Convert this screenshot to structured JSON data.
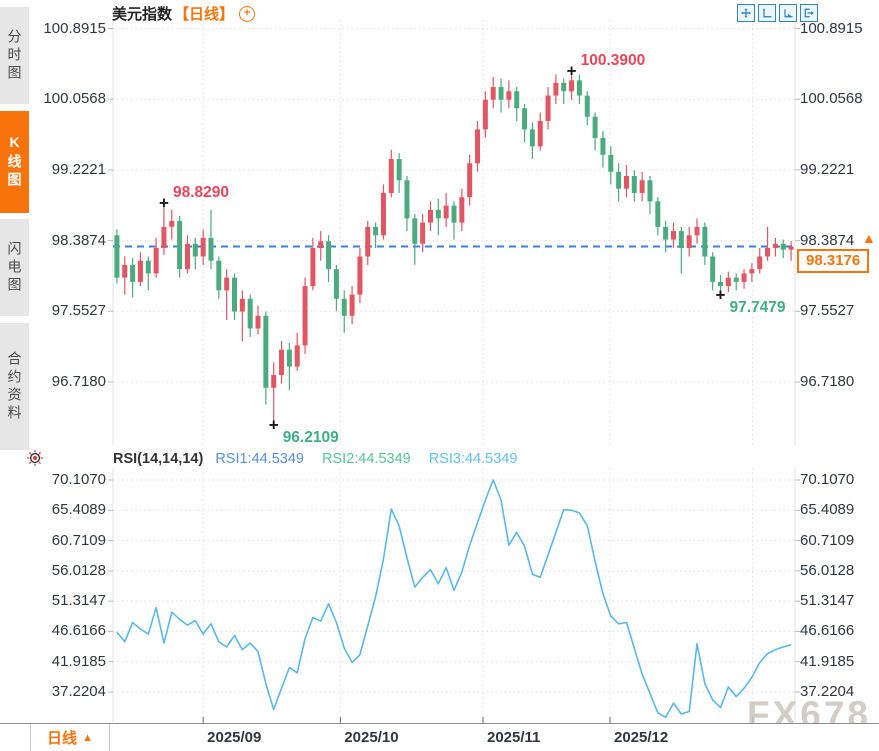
{
  "sidebar": {
    "items": [
      {
        "label": "分时图",
        "active": false
      },
      {
        "label": "K线图",
        "active": true
      },
      {
        "label": "闪电图",
        "active": false
      },
      {
        "label": "合约资料",
        "active": false
      }
    ]
  },
  "header": {
    "symbol": "美元指数",
    "period_tag": "【日线】",
    "add_icon": "+"
  },
  "toolbar": {
    "buttons": [
      "move-icon",
      "y-axis-zoom-icon",
      "x-axis-zoom-icon",
      "pan-right-icon"
    ]
  },
  "price_tag": {
    "value": "98.3176",
    "arrow": "▲"
  },
  "rsi_legend": {
    "name": "RSI(14,14,14)",
    "rsi1": "RSI1:44.5349",
    "rsi2": "RSI2:44.5349",
    "rsi3": "RSI3:44.5349"
  },
  "bottom_bar": {
    "period_label": "日线",
    "arrow": "▲"
  },
  "watermark": "FX678",
  "colors": {
    "accent_orange": "#f7740c",
    "up_red": "#e25562",
    "down_green": "#4bab7e",
    "dashed_blue": "#3b7fdd",
    "rsi_line": "#58b8ea",
    "annotation_red": "#e8455a",
    "annotation_green": "#3fae86"
  },
  "chart_data": [
    {
      "type": "candlestick",
      "title": "美元指数【日线】",
      "y_ticks": [
        100.8915,
        100.0568,
        99.2221,
        98.3874,
        97.5527,
        96.718
      ],
      "x_ticks": [
        {
          "label": "2025/09",
          "index": 11.5
        },
        {
          "label": "2025/10",
          "index": 29
        },
        {
          "label": "2025/11",
          "index": 47.2
        },
        {
          "label": "2025/12",
          "index": 63.4
        },
        {
          "label": "",
          "index": 81.6
        }
      ],
      "current_price": 98.3176,
      "up_color": "#e25562",
      "down_color": "#4bab7e",
      "annotations": [
        {
          "label": "98.8290",
          "index": 6,
          "price": 98.829,
          "color": "#e8455a",
          "position": "above"
        },
        {
          "label": "100.3900",
          "index": 58,
          "price": 100.39,
          "color": "#e8455a",
          "position": "above"
        },
        {
          "label": "96.2109",
          "index": 20,
          "price": 96.2109,
          "color": "#3fae86",
          "position": "below"
        },
        {
          "label": "97.7479",
          "index": 77,
          "price": 97.7479,
          "color": "#3fae86",
          "position": "below"
        }
      ],
      "candles": [
        [
          98.45,
          98.52,
          97.88,
          97.95
        ],
        [
          97.95,
          98.2,
          97.75,
          98.1
        ],
        [
          98.1,
          98.18,
          97.72,
          97.9
        ],
        [
          97.9,
          98.25,
          97.85,
          98.15
        ],
        [
          98.15,
          98.2,
          97.8,
          98.0
        ],
        [
          98.0,
          98.42,
          97.95,
          98.3
        ],
        [
          98.3,
          98.829,
          98.22,
          98.55
        ],
        [
          98.55,
          98.75,
          98.4,
          98.62
        ],
        [
          98.62,
          98.68,
          97.95,
          98.05
        ],
        [
          98.05,
          98.45,
          98.0,
          98.35
        ],
        [
          98.35,
          98.42,
          98.05,
          98.2
        ],
        [
          98.2,
          98.52,
          98.1,
          98.42
        ],
        [
          98.42,
          98.75,
          98.05,
          98.15
        ],
        [
          98.15,
          98.2,
          97.7,
          97.8
        ],
        [
          97.8,
          98.05,
          97.45,
          97.95
        ],
        [
          97.95,
          98.0,
          97.45,
          97.55
        ],
        [
          97.55,
          97.8,
          97.2,
          97.7
        ],
        [
          97.7,
          97.75,
          97.25,
          97.35
        ],
        [
          97.35,
          97.62,
          97.28,
          97.5
        ],
        [
          97.5,
          97.55,
          96.45,
          96.65
        ],
        [
          96.65,
          96.95,
          96.2109,
          96.8
        ],
        [
          96.8,
          97.2,
          96.7,
          97.1
        ],
        [
          97.1,
          97.18,
          96.62,
          96.9
        ],
        [
          96.9,
          97.3,
          96.85,
          97.15
        ],
        [
          97.15,
          97.95,
          97.05,
          97.85
        ],
        [
          97.85,
          98.42,
          97.8,
          98.3
        ],
        [
          98.3,
          98.5,
          98.15,
          98.38
        ],
        [
          98.38,
          98.45,
          97.9,
          98.05
        ],
        [
          98.05,
          98.1,
          97.55,
          97.7
        ],
        [
          97.7,
          97.8,
          97.3,
          97.5
        ],
        [
          97.5,
          97.85,
          97.4,
          97.75
        ],
        [
          97.75,
          98.3,
          97.65,
          98.2
        ],
        [
          98.2,
          98.62,
          98.1,
          98.55
        ],
        [
          98.55,
          98.6,
          98.3,
          98.45
        ],
        [
          98.45,
          99.05,
          98.4,
          98.95
        ],
        [
          98.95,
          99.46,
          98.9,
          99.35
        ],
        [
          99.35,
          99.42,
          98.95,
          99.1
        ],
        [
          99.1,
          99.15,
          98.5,
          98.65
        ],
        [
          98.65,
          98.7,
          98.1,
          98.35
        ],
        [
          98.35,
          98.7,
          98.25,
          98.6
        ],
        [
          98.6,
          98.85,
          98.5,
          98.75
        ],
        [
          98.75,
          98.88,
          98.45,
          98.65
        ],
        [
          98.65,
          98.95,
          98.55,
          98.8
        ],
        [
          98.8,
          98.85,
          98.4,
          98.6
        ],
        [
          98.6,
          99.0,
          98.5,
          98.9
        ],
        [
          98.9,
          99.4,
          98.8,
          99.3
        ],
        [
          99.3,
          99.8,
          99.2,
          99.7
        ],
        [
          99.7,
          100.15,
          99.6,
          100.05
        ],
        [
          100.05,
          100.32,
          99.95,
          100.2
        ],
        [
          100.2,
          100.3,
          99.9,
          100.05
        ],
        [
          100.05,
          100.28,
          99.95,
          100.15
        ],
        [
          100.15,
          100.2,
          99.8,
          99.95
        ],
        [
          99.95,
          100.0,
          99.55,
          99.7
        ],
        [
          99.7,
          99.78,
          99.35,
          99.5
        ],
        [
          99.5,
          99.9,
          99.45,
          99.8
        ],
        [
          99.8,
          100.2,
          99.7,
          100.1
        ],
        [
          100.1,
          100.35,
          100.0,
          100.25
        ],
        [
          100.25,
          100.3,
          100.0,
          100.15
        ],
        [
          100.15,
          100.39,
          100.05,
          100.28
        ],
        [
          100.28,
          100.35,
          100.0,
          100.1
        ],
        [
          100.1,
          100.15,
          99.75,
          99.85
        ],
        [
          99.85,
          99.9,
          99.45,
          99.6
        ],
        [
          99.6,
          99.68,
          99.25,
          99.4
        ],
        [
          99.4,
          99.5,
          99.05,
          99.2
        ],
        [
          99.2,
          99.3,
          98.85,
          99.0
        ],
        [
          99.0,
          99.28,
          98.9,
          99.15
        ],
        [
          99.15,
          99.22,
          98.85,
          98.95
        ],
        [
          98.95,
          99.2,
          98.85,
          99.1
        ],
        [
          99.1,
          99.15,
          98.7,
          98.85
        ],
        [
          98.85,
          98.9,
          98.45,
          98.55
        ],
        [
          98.55,
          98.62,
          98.25,
          98.4
        ],
        [
          98.4,
          98.6,
          98.3,
          98.5
        ],
        [
          98.5,
          98.55,
          98.0,
          98.3
        ],
        [
          98.3,
          98.55,
          98.2,
          98.45
        ],
        [
          98.45,
          98.65,
          98.35,
          98.55
        ],
        [
          98.55,
          98.6,
          98.1,
          98.2
        ],
        [
          98.2,
          98.25,
          97.8,
          97.9
        ],
        [
          97.9,
          97.98,
          97.7479,
          97.85
        ],
        [
          97.85,
          98.02,
          97.78,
          97.95
        ],
        [
          97.95,
          98.0,
          97.8,
          97.9
        ],
        [
          97.9,
          98.05,
          97.82,
          98.0
        ],
        [
          98.0,
          98.12,
          97.9,
          98.05
        ],
        [
          98.05,
          98.3,
          98.0,
          98.2
        ],
        [
          98.2,
          98.55,
          98.15,
          98.3
        ],
        [
          98.3,
          98.42,
          98.2,
          98.35
        ],
        [
          98.35,
          98.4,
          98.18,
          98.28
        ],
        [
          98.28,
          98.38,
          98.15,
          98.3176
        ]
      ]
    },
    {
      "type": "line",
      "name": "RSI",
      "params": "(14,14,14)",
      "series": [
        {
          "name": "RSI1",
          "value": 44.5349,
          "color": "#5a8de8"
        },
        {
          "name": "RSI2",
          "value": 44.5349,
          "color": "#55c593"
        },
        {
          "name": "RSI3",
          "value": 44.5349,
          "color": "#5ec1ef"
        }
      ],
      "line_color": "#58b8ea",
      "y_ticks": [
        70.107,
        65.4089,
        60.7109,
        56.0128,
        51.3147,
        46.6166,
        41.9185,
        37.2204
      ],
      "values": [
        46.5,
        45.0,
        48.0,
        47.0,
        46.2,
        50.3,
        44.8,
        49.6,
        48.5,
        47.6,
        48.3,
        46.2,
        47.8,
        45.0,
        44.2,
        46.0,
        43.8,
        44.8,
        43.5,
        38.5,
        34.5,
        37.8,
        41.0,
        40.2,
        45.5,
        48.8,
        48.2,
        50.9,
        48.0,
        44.0,
        41.8,
        43.0,
        47.5,
        52.0,
        57.8,
        65.6,
        63.0,
        58.0,
        53.5,
        55.0,
        56.2,
        54.0,
        56.5,
        53.0,
        55.8,
        60.0,
        63.5,
        67.0,
        70.1,
        67.0,
        60.0,
        62.0,
        59.8,
        55.5,
        55.0,
        58.5,
        62.0,
        65.5,
        65.4,
        65.0,
        63.0,
        57.5,
        52.5,
        49.0,
        47.8,
        48.0,
        44.0,
        40.0,
        37.0,
        34.0,
        33.3,
        35.5,
        33.8,
        34.2,
        44.7,
        38.5,
        36.0,
        34.8,
        38.0,
        36.5,
        37.8,
        39.5,
        41.8,
        43.2,
        43.8,
        44.2,
        44.5349
      ]
    }
  ]
}
